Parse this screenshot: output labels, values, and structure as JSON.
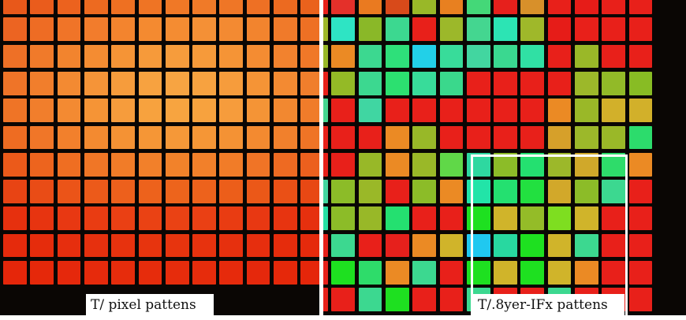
{
  "left_panel": {
    "caption": "T/ pixel pattens",
    "colors": [
      "#e8581a",
      "#ea5c1c",
      "#ec621e",
      "#ed6a20",
      "#ee7022",
      "#ef7424",
      "#f07826",
      "#f07a28",
      "#ef7626",
      "#ee7024",
      "#ec6a20",
      "#ea621c",
      "#ec6422",
      "#ee6c24",
      "#f07428",
      "#f27c2c",
      "#f3842e",
      "#f48a30",
      "#f48c32",
      "#f49036",
      "#f38a32",
      "#f2842e",
      "#f07a2a",
      "#ee7024",
      "#ee7026",
      "#f07a2a",
      "#f2842e",
      "#f48c32",
      "#f59436",
      "#f69a3a",
      "#f69c3c",
      "#f69a3a",
      "#f59436",
      "#f48c32",
      "#f2822e",
      "#f07828",
      "#ef7428",
      "#f17e2c",
      "#f38a32",
      "#f59438",
      "#f69c3c",
      "#f7a240",
      "#f7a442",
      "#f7a240",
      "#f69c3c",
      "#f59436",
      "#f38a32",
      "#f07e2c",
      "#ef7426",
      "#f17e2c",
      "#f38a32",
      "#f59436",
      "#f69c3c",
      "#f7a23e",
      "#f7a440",
      "#f7a23e",
      "#f69c3c",
      "#f49436",
      "#f28830",
      "#f07c2a",
      "#ee6c22",
      "#f07628",
      "#f2802c",
      "#f38a30",
      "#f49234",
      "#f59636",
      "#f59838",
      "#f59636",
      "#f49234",
      "#f38a30",
      "#f1802c",
      "#ef7426",
      "#eb5a1a",
      "#ed641e",
      "#ef6e22",
      "#f07626",
      "#f17c28",
      "#f2802a",
      "#f2822a",
      "#f2802a",
      "#f17c28",
      "#f07426",
      "#ee6a22",
      "#ec601e",
      "#e84414",
      "#e94c16",
      "#eb5418",
      "#ec5a1a",
      "#ed601c",
      "#ed621c",
      "#ed641c",
      "#ed621c",
      "#ec5e1a",
      "#eb5818",
      "#ea5016",
      "#e84814",
      "#e6300e",
      "#e73410",
      "#e83812",
      "#e93c12",
      "#ea4014",
      "#ea4214",
      "#ea4214",
      "#ea4014",
      "#e93c12",
      "#e83812",
      "#e73410",
      "#e6300e",
      "#e52a0c",
      "#e52c0c",
      "#e62e0e",
      "#e6300e",
      "#e7320e",
      "#e7340e",
      "#e7340e",
      "#e7320e",
      "#e6300e",
      "#e62e0e",
      "#e52c0c",
      "#e52a0c",
      "#e5260a",
      "#e5280a",
      "#e5280c",
      "#e62a0c",
      "#e62c0c",
      "#e62c0c",
      "#e62c0c",
      "#e62c0c",
      "#e62a0c",
      "#e5280c",
      "#e5280a",
      "#e5260a"
    ]
  },
  "right_panel": {
    "caption": "T/.8yer-IFx pattens",
    "colors": [
      "#e8201a",
      "#e4302a",
      "#ea7a20",
      "#d84a1a",
      "#99b828",
      "#e88020",
      "#44d878",
      "#e6201c",
      "#d8902a",
      "#e8201a",
      "#e61c18",
      "#e8201a",
      "#e8201a",
      "#9fb82a",
      "#2ee4c4",
      "#8ab828",
      "#3cd890",
      "#e8201a",
      "#9cb82a",
      "#44d690",
      "#2ce4b4",
      "#9fb82a",
      "#e61c18",
      "#e8201a",
      "#e8201a",
      "#e8201a",
      "#98b828",
      "#eb8a24",
      "#3cd890",
      "#2ee07a",
      "#22d0e8",
      "#38dc9a",
      "#42d6a0",
      "#3ad890",
      "#30e0a4",
      "#e8201a",
      "#9ab828",
      "#e8201a",
      "#e8201a",
      "#e8201a",
      "#94ba26",
      "#3cd890",
      "#2ce070",
      "#38dc9a",
      "#3ad88c",
      "#e8201a",
      "#e8201a",
      "#e8201a",
      "#e8201a",
      "#9cb82a",
      "#92ba28",
      "#88bc24",
      "#44d690",
      "#e8201a",
      "#40d6a2",
      "#e8201a",
      "#e8201a",
      "#e8201a",
      "#e8201a",
      "#e8201a",
      "#e8201a",
      "#eb8a24",
      "#9ab828",
      "#d2b02a",
      "#d2b02a",
      "#e8201a",
      "#e8201a",
      "#e8201a",
      "#eb8a24",
      "#98b828",
      "#e8201a",
      "#e8201a",
      "#e8201a",
      "#e8201a",
      "#d6a02a",
      "#9cb82a",
      "#9ab828",
      "#2cdc6c",
      "#e8201a",
      "#e8201a",
      "#98b828",
      "#eb8a24",
      "#9ab828",
      "#60d848",
      "#2ed8a0",
      "#8cbc28",
      "#24e070",
      "#9cb82a",
      "#d0a82a",
      "#2edc6a",
      "#eb8a24",
      "#42d6a0",
      "#8cbc28",
      "#9ab828",
      "#e8201a",
      "#8cbc28",
      "#eb8a24",
      "#22e4a8",
      "#24e070",
      "#22e040",
      "#d2a82a",
      "#8cbc28",
      "#3cd890",
      "#e8201a",
      "#26e0a4",
      "#8cbc28",
      "#98b828",
      "#24e070",
      "#e8201a",
      "#e8201a",
      "#1ee020",
      "#d0b42a",
      "#94bc28",
      "#7ede20",
      "#d0b42a",
      "#e8201a",
      "#e8201a",
      "#e8201a",
      "#3cd890",
      "#e8201a",
      "#e6201c",
      "#eb8a24",
      "#d0b42a",
      "#20c8f0",
      "#28d8a0",
      "#1ee020",
      "#d0b42a",
      "#3cd890",
      "#e8201a",
      "#e8201a",
      "#e8201a",
      "#1ee020",
      "#2edc6a",
      "#eb8a24",
      "#3cd890",
      "#e8201a",
      "#1ee020",
      "#d0b42a",
      "#1ee020",
      "#d0b42a",
      "#eb8a24",
      "#e8201a",
      "#e8201a",
      "#e8201a",
      "#e8201a",
      "#3cd890",
      "#1ee020",
      "#e8201a",
      "#e8201a",
      "#3cd890",
      "#e8201a",
      "#e8201a",
      "#3cd890",
      "#e8201a",
      "#e8201a",
      "#e8201a"
    ]
  }
}
